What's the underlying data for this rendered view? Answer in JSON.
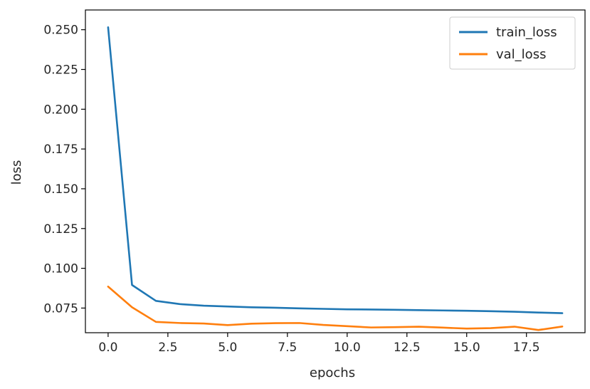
{
  "chart_data": {
    "type": "line",
    "title": "",
    "xlabel": "epochs",
    "ylabel": "loss",
    "xlim": [
      -0.95,
      19.95
    ],
    "ylim": [
      0.0595,
      0.2624
    ],
    "xticks": [
      0.0,
      2.5,
      5.0,
      7.5,
      10.0,
      12.5,
      15.0,
      17.5
    ],
    "xtick_labels": [
      "0.0",
      "2.5",
      "5.0",
      "7.5",
      "10.0",
      "12.5",
      "15.0",
      "17.5"
    ],
    "yticks": [
      0.075,
      0.1,
      0.125,
      0.15,
      0.175,
      0.2,
      0.225,
      0.25
    ],
    "ytick_labels": [
      "0.075",
      "0.100",
      "0.125",
      "0.150",
      "0.175",
      "0.200",
      "0.225",
      "0.250"
    ],
    "grid": false,
    "legend": "top-right",
    "x": [
      0,
      1,
      2,
      3,
      4,
      5,
      6,
      7,
      8,
      9,
      10,
      11,
      12,
      13,
      14,
      15,
      16,
      17,
      18,
      19
    ],
    "series": [
      {
        "name": "train_loss",
        "color": "#1f77b4",
        "values": [
          0.2515,
          0.0895,
          0.0795,
          0.0775,
          0.0765,
          0.076,
          0.0755,
          0.0752,
          0.0748,
          0.0745,
          0.0742,
          0.0741,
          0.0739,
          0.0737,
          0.0735,
          0.0733,
          0.073,
          0.0727,
          0.0722,
          0.0718
        ]
      },
      {
        "name": "val_loss",
        "color": "#ff7f0e",
        "values": [
          0.0885,
          0.0755,
          0.0663,
          0.0656,
          0.0653,
          0.0643,
          0.0652,
          0.0655,
          0.0656,
          0.0644,
          0.0636,
          0.0628,
          0.063,
          0.0633,
          0.0627,
          0.0621,
          0.0624,
          0.0633,
          0.0612,
          0.0634
        ]
      }
    ]
  }
}
